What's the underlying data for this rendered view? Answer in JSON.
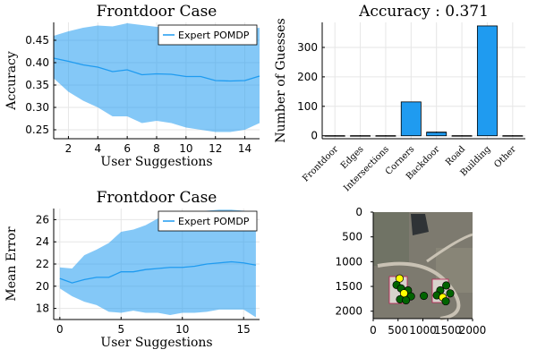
{
  "chart_data": [
    {
      "id": "acc",
      "type": "line",
      "title": "Frontdoor Case",
      "xlabel": "User Suggestions",
      "ylabel": "Accuracy",
      "xlim": [
        1,
        15
      ],
      "ylim": [
        0.23,
        0.49
      ],
      "xticks": [
        2,
        4,
        6,
        8,
        10,
        12,
        14
      ],
      "yticks": [
        0.25,
        0.3,
        0.35,
        0.4,
        0.45
      ],
      "ytick_labels": [
        "0.25",
        "0.30",
        "0.35",
        "0.40",
        "0.45"
      ],
      "legend": {
        "position": "top-right"
      },
      "series": [
        {
          "name": "Expert POMDP",
          "color": "#1f9bf0",
          "x": [
            1,
            2,
            3,
            4,
            5,
            6,
            7,
            8,
            9,
            10,
            11,
            12,
            13,
            14,
            15
          ],
          "values": [
            0.41,
            0.403,
            0.395,
            0.39,
            0.38,
            0.384,
            0.373,
            0.375,
            0.374,
            0.369,
            0.369,
            0.36,
            0.359,
            0.36,
            0.37
          ],
          "upper": [
            0.46,
            0.47,
            0.478,
            0.483,
            0.481,
            0.488,
            0.484,
            0.48,
            0.478,
            0.482,
            0.478,
            0.476,
            0.474,
            0.474,
            0.478
          ],
          "lower": [
            0.365,
            0.335,
            0.315,
            0.3,
            0.28,
            0.28,
            0.265,
            0.27,
            0.265,
            0.255,
            0.25,
            0.245,
            0.245,
            0.25,
            0.265
          ]
        }
      ]
    },
    {
      "id": "bar",
      "type": "bar",
      "title": "Accuracy : 0.371",
      "ylabel": "Number of Guesses",
      "categories": [
        "Frontdoor",
        "Edges",
        "Intersections",
        "Corners",
        "Backdoor",
        "Road",
        "Building",
        "Other"
      ],
      "values": [
        0,
        0,
        0,
        115,
        12,
        0,
        373,
        0
      ],
      "errors": [
        2,
        2,
        2,
        0,
        2,
        2,
        0,
        2
      ],
      "color": "#1f9bf0",
      "ylim": [
        -10,
        385
      ],
      "yticks": [
        0,
        100,
        200,
        300
      ],
      "ytick_labels": [
        "0",
        "100",
        "200",
        "300"
      ]
    },
    {
      "id": "err",
      "type": "line",
      "title": "Frontdoor Case",
      "xlabel": "User Suggestions",
      "ylabel": "Mean Error",
      "xlim": [
        -0.5,
        16.3
      ],
      "ylim": [
        17.0,
        27.0
      ],
      "xticks": [
        0,
        5,
        10,
        15
      ],
      "yticks": [
        18,
        20,
        22,
        24,
        26
      ],
      "legend": {
        "position": "top-right"
      },
      "series": [
        {
          "name": "Expert POMDP",
          "color": "#1f9bf0",
          "x": [
            0,
            1,
            2,
            3,
            4,
            5,
            6,
            7,
            8,
            9,
            10,
            11,
            12,
            13,
            14,
            15,
            16
          ],
          "values": [
            20.7,
            20.3,
            20.6,
            20.8,
            20.8,
            21.3,
            21.3,
            21.5,
            21.6,
            21.7,
            21.7,
            21.8,
            22.0,
            22.1,
            22.2,
            22.1,
            21.9
          ],
          "upper": [
            21.7,
            21.6,
            22.8,
            23.3,
            23.9,
            24.9,
            25.1,
            25.5,
            26.1,
            26.4,
            26.5,
            26.6,
            26.8,
            26.9,
            26.9,
            26.8,
            26.6
          ],
          "lower": [
            19.8,
            19.1,
            18.6,
            18.3,
            17.7,
            17.6,
            17.8,
            17.6,
            17.6,
            17.4,
            17.6,
            17.6,
            17.7,
            17.9,
            17.9,
            17.9,
            17.2
          ]
        }
      ]
    },
    {
      "id": "map",
      "type": "scatter",
      "xlim": [
        0,
        2000
      ],
      "ylim": [
        2150,
        0
      ],
      "xticks": [
        0,
        500,
        1000,
        1500,
        2000
      ],
      "yticks": [
        0,
        500,
        1000,
        1500,
        2000
      ],
      "image_extent": [
        0,
        2000,
        0,
        2150
      ],
      "points": [
        {
          "x": 530,
          "y": 1340,
          "color": "#ffff00"
        },
        {
          "x": 470,
          "y": 1470,
          "color": "#006400"
        },
        {
          "x": 560,
          "y": 1540,
          "color": "#006400"
        },
        {
          "x": 700,
          "y": 1580,
          "color": "#006400"
        },
        {
          "x": 620,
          "y": 1640,
          "color": "#ffff00"
        },
        {
          "x": 760,
          "y": 1700,
          "color": "#006400"
        },
        {
          "x": 540,
          "y": 1760,
          "color": "#006400"
        },
        {
          "x": 660,
          "y": 1780,
          "color": "#006400"
        },
        {
          "x": 1020,
          "y": 1690,
          "color": "#006400"
        },
        {
          "x": 1470,
          "y": 1480,
          "color": "#006400"
        },
        {
          "x": 1350,
          "y": 1580,
          "color": "#006400"
        },
        {
          "x": 1280,
          "y": 1680,
          "color": "#006400"
        },
        {
          "x": 1400,
          "y": 1720,
          "color": "#ffff00"
        },
        {
          "x": 1550,
          "y": 1640,
          "color": "#006400"
        },
        {
          "x": 1460,
          "y": 1800,
          "color": "#006400"
        }
      ]
    }
  ]
}
